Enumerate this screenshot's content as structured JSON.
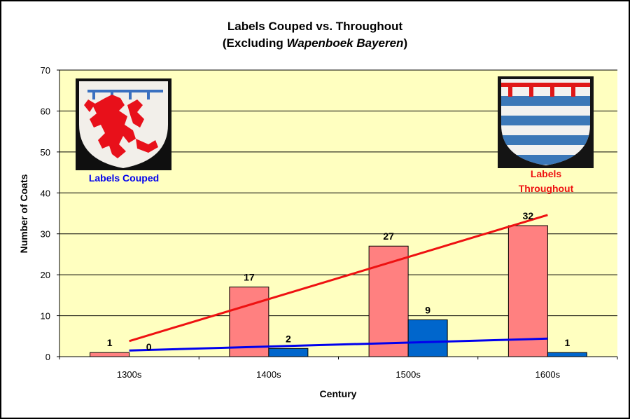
{
  "chart_data": {
    "type": "bar",
    "title_line1": "Labels Couped vs. Throughout",
    "title_line2_prefix": "(Excluding ",
    "title_line2_italic": "Wapenboek Bayeren",
    "title_line2_suffix": ")",
    "xlabel": "Century",
    "ylabel": "Number of Coats",
    "categories": [
      "1300s",
      "1400s",
      "1500s",
      "1600s"
    ],
    "ylim": [
      0,
      70
    ],
    "yticks": [
      0,
      10,
      20,
      30,
      40,
      50,
      60,
      70
    ],
    "grid": true,
    "legend": "none",
    "series": [
      {
        "values": [
          1,
          17,
          27,
          32
        ],
        "color": "#ff8080"
      },
      {
        "values": [
          0,
          2,
          9,
          1
        ],
        "color": "#0066cc"
      }
    ],
    "trendlines": [
      {
        "series_index": 0,
        "color": "#ee1111",
        "start": 3.8,
        "end": 34.6
      },
      {
        "series_index": 1,
        "color": "#0000ee",
        "start": 1.5,
        "end": 4.4
      }
    ],
    "plot_background": "#ffffc0",
    "images": [
      {
        "name": "labels-couped-shield",
        "caption": "Labels Couped",
        "caption_color": "#0000ee"
      },
      {
        "name": "labels-throughout-shield",
        "caption_line1": "Labels",
        "caption_line2": "Throughout",
        "caption_color": "#ee1111"
      }
    ]
  }
}
